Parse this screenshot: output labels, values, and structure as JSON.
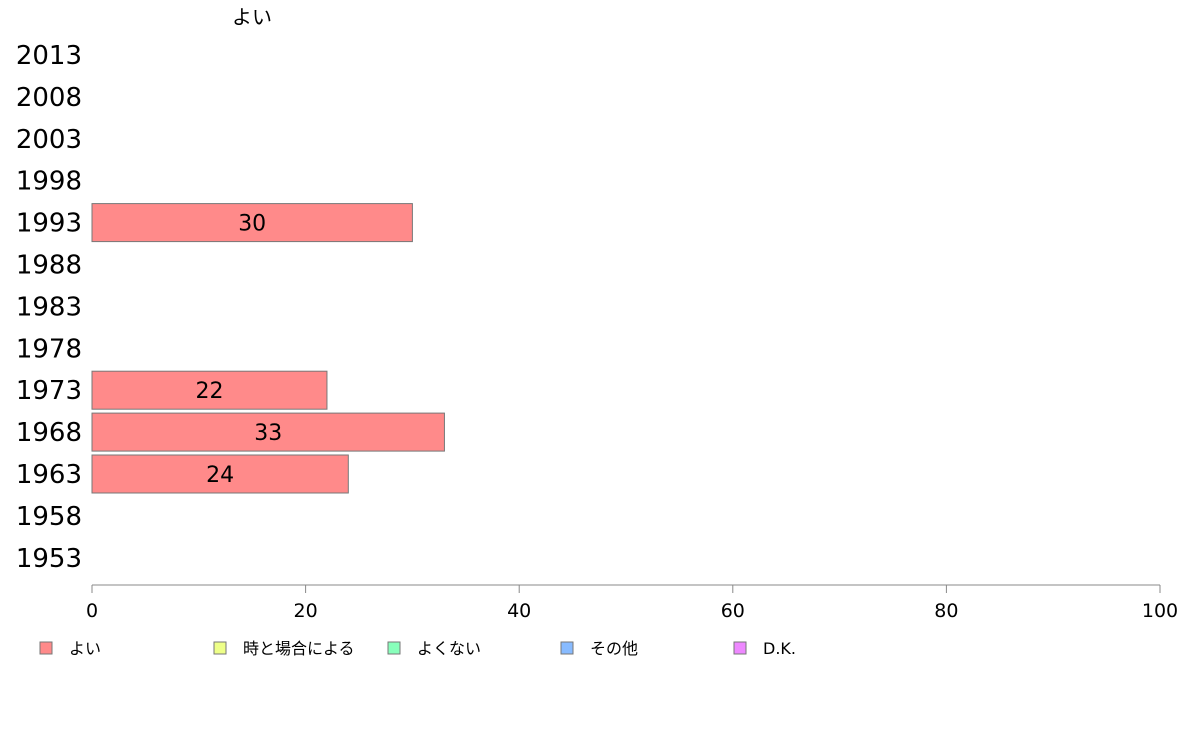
{
  "chart_data": {
    "type": "bar",
    "orientation": "horizontal",
    "title": "よい",
    "categories": [
      "2013",
      "2008",
      "2003",
      "1998",
      "1993",
      "1988",
      "1983",
      "1978",
      "1973",
      "1968",
      "1963",
      "1958",
      "1953"
    ],
    "series": [
      {
        "name": "よい",
        "color": "#ff8a8a",
        "values": [
          null,
          null,
          null,
          null,
          30,
          null,
          null,
          null,
          22,
          33,
          24,
          null,
          null
        ]
      }
    ],
    "xlim": [
      0,
      100
    ],
    "xticks": [
      0,
      20,
      40,
      60,
      80,
      100
    ],
    "grid": false,
    "legend": {
      "placement": "bottom",
      "entries": [
        {
          "label": "よい",
          "color": "#ff8a8a"
        },
        {
          "label": "時と場合による",
          "color": "#eeff88"
        },
        {
          "label": "よくない",
          "color": "#88ffbb"
        },
        {
          "label": "その他",
          "color": "#88bbff"
        },
        {
          "label": "D.K.",
          "color": "#ee88ff"
        }
      ]
    }
  }
}
